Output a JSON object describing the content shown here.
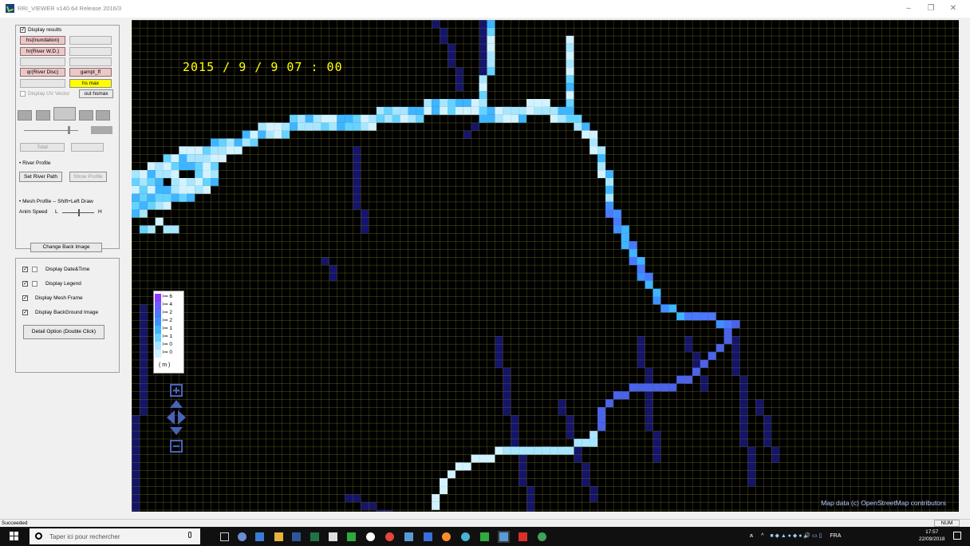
{
  "window": {
    "title": "RRI_VIEWER  v140.64 Release 2016/3",
    "controls": [
      "–",
      "❐",
      "✕"
    ]
  },
  "left_panel": {
    "display_results_label": "Display results",
    "display_results_checked": true,
    "hs_button": "hs(Inundation)",
    "hr_button": "hr(River W.D.)",
    "qr_button": "qr(River Disc)",
    "gampt_button": "gampt_ff",
    "hs_max_button": "hs max",
    "display_uv_label": "Display UV Vector",
    "out_hsmax_button": "out hsmax",
    "total_button": "Total",
    "river_profile_label": "• River Profile",
    "set_river_path_button": "Set River Path",
    "show_profile_button": "Show Profile",
    "mesh_profile_label": "• Mesh Profile -- Shift+Left Draw",
    "anim_speed_label": "Anim Speed",
    "anim_low": "L",
    "anim_high": "H",
    "change_back_image_button": "Change Back Image",
    "display_datetime_label": "Display Date&Time",
    "display_legend_label": "Display Legend",
    "display_mesh_frame_label": "Display Mesh Frame",
    "display_background_label": "Display BackGround Image",
    "detail_option_button": "Detail Option (Double Click)"
  },
  "map": {
    "datetime": "2015 / 9 / 9 07 : 00",
    "attribution": "Map data (c) OpenStreetMap contributors",
    "legend": {
      "entries": [
        {
          "label": ">= 6",
          "color": "#8a3cff"
        },
        {
          "label": ">= 4",
          "color": "#6a5cff"
        },
        {
          "label": ">= 2",
          "color": "#4a78ff"
        },
        {
          "label": ">= 2",
          "color": "#3f90ff"
        },
        {
          "label": ">= 1",
          "color": "#3fb4ff"
        },
        {
          "label": ">= 1",
          "color": "#66d2ff"
        },
        {
          "label": ">= 0",
          "color": "#a8e6ff"
        },
        {
          "label": ">= 0",
          "color": "#d2f2ff"
        }
      ],
      "unit": "( m )"
    },
    "colors": {
      "background": "#000000",
      "mesh_line": "#5a5a1e",
      "channel_dark": "#14146e"
    }
  },
  "status": {
    "text": "Succeeded",
    "num": "NUM"
  },
  "taskbar": {
    "search_placeholder": "Taper ici pour rechercher",
    "lang": "FRA",
    "time": "17:57",
    "date": "22/09/2018"
  }
}
